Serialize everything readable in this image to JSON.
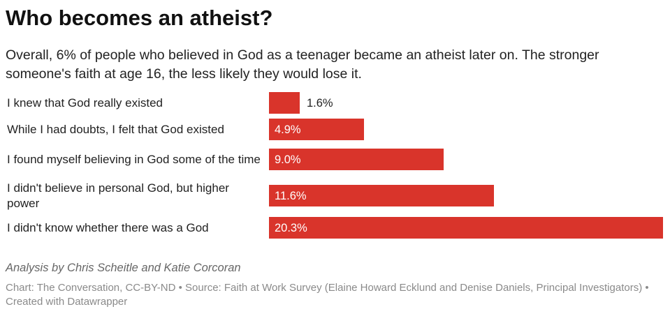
{
  "title": "Who becomes an atheist?",
  "subtitle": "Overall, 6% of people who believed in God as a teenager became an atheist later on. The stronger someone's faith at age 16, the less likely they would lose it.",
  "credit": "Analysis by Chris Scheitle and Katie Corcoran",
  "footer": "Chart: The Conversation, CC-BY-ND • Source: Faith at Work Survey (Elaine Howard Ecklund and Denise Daniels, Principal Investigators) • Created with Datawrapper",
  "colors": {
    "bar": "#d9342b"
  },
  "chart_data": {
    "type": "bar",
    "orientation": "horizontal",
    "categories": [
      "I knew that God really existed",
      "While I had doubts, I felt that God existed",
      "I found myself believing in God some of the time",
      "I didn't believe in personal God, but higher power",
      "I didn't know whether there was a God"
    ],
    "values": [
      1.6,
      4.9,
      9.0,
      11.6,
      20.3
    ],
    "value_labels": [
      "1.6%",
      "4.9%",
      "9.0%",
      "11.6%",
      "20.3%"
    ],
    "xlim": [
      0,
      20.3
    ],
    "grid": false
  }
}
